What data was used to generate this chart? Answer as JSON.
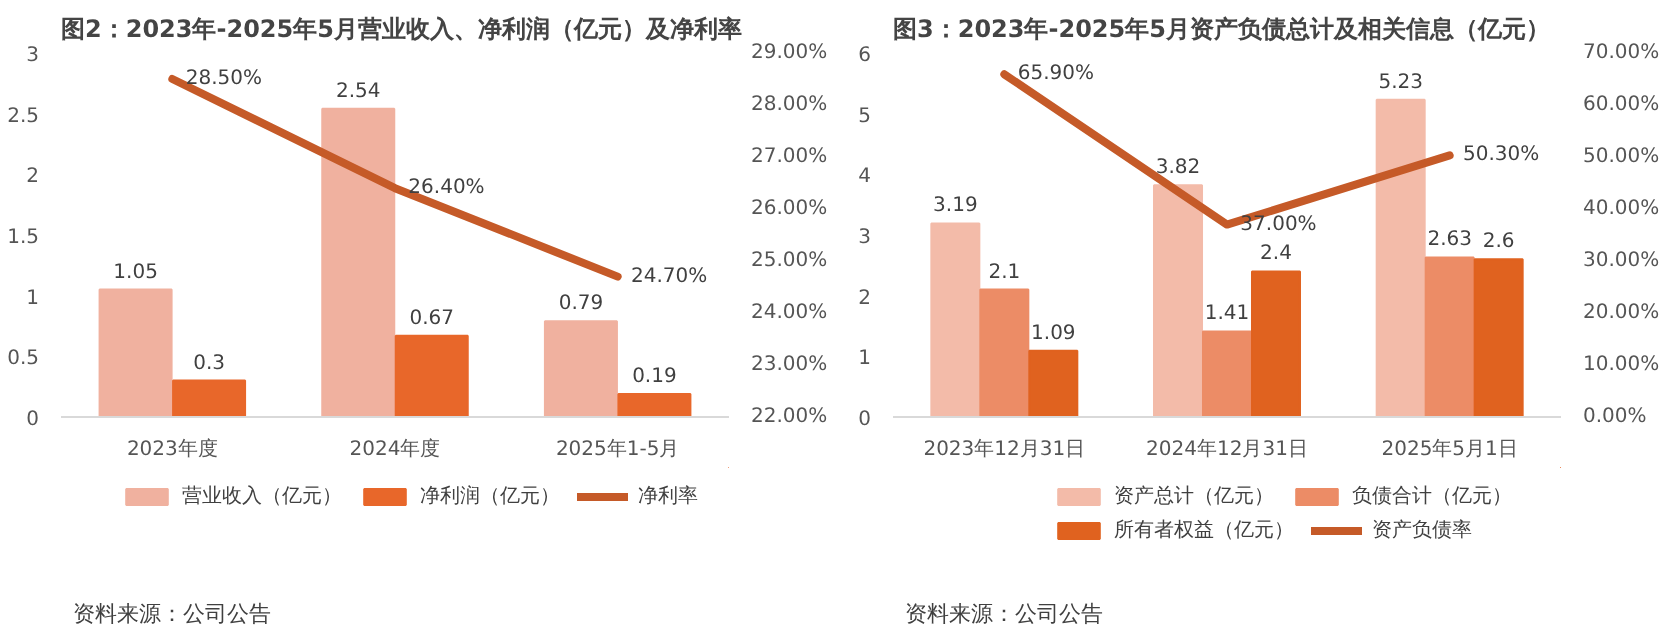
{
  "chart_data": [
    {
      "type": "bar",
      "title": "图2：2023年-2025年5月营业收入、净利润（亿元）及净利率",
      "categories": [
        "2023年度",
        "2024年度",
        "2025年1-5月"
      ],
      "ylim": [
        0,
        3
      ],
      "yticks": [
        0,
        0.5,
        1,
        1.5,
        2,
        2.5,
        3
      ],
      "y2lim": [
        22,
        29
      ],
      "y2ticks": [
        {
          "value": 22,
          "label": "22.00%"
        },
        {
          "value": 23,
          "label": "23.00%"
        },
        {
          "value": 24,
          "label": "24.00%"
        },
        {
          "value": 25,
          "label": "25.00%"
        },
        {
          "value": 26,
          "label": "26.00%"
        },
        {
          "value": 27,
          "label": "27.00%"
        },
        {
          "value": 28,
          "label": "28.00%"
        },
        {
          "value": 29,
          "label": "29.00%"
        }
      ],
      "legend": "bottom",
      "annotations": [
        "资料来源：公司公告"
      ],
      "series": [
        {
          "name": "营业收入（亿元）",
          "color": "#f0b19f",
          "values": [
            1.05,
            2.54,
            0.79
          ],
          "value_labels": [
            "1.05",
            "2.54",
            "0.79"
          ]
        },
        {
          "name": "净利润（亿元）",
          "color": "#e8672a",
          "values": [
            0.3,
            0.67,
            0.19
          ],
          "value_labels": [
            "0.3",
            "0.67",
            "0.19"
          ]
        },
        {
          "name": "净利率",
          "type": "line",
          "axis": "y2",
          "color": "#c55a28",
          "values": [
            28.5,
            26.4,
            24.7
          ],
          "value_labels": [
            "28.50%",
            "26.40%",
            "24.70%"
          ]
        }
      ]
    },
    {
      "type": "bar",
      "title": "图3：2023年-2025年5月资产负债总计及相关信息（亿元）",
      "categories": [
        "2023年12月31日",
        "2024年12月31日",
        "2025年5月1日"
      ],
      "ylim": [
        0,
        6
      ],
      "yticks": [
        0,
        1,
        2,
        3,
        4,
        5,
        6
      ],
      "y2lim": [
        0,
        70
      ],
      "y2ticks": [
        {
          "value": 0,
          "label": "0.00%"
        },
        {
          "value": 10,
          "label": "10.00%"
        },
        {
          "value": 20,
          "label": "20.00%"
        },
        {
          "value": 30,
          "label": "30.00%"
        },
        {
          "value": 40,
          "label": "40.00%"
        },
        {
          "value": 50,
          "label": "50.00%"
        },
        {
          "value": 60,
          "label": "60.00%"
        },
        {
          "value": 70,
          "label": "70.00%"
        }
      ],
      "legend": "bottom",
      "annotations": [
        "资料来源：公司公告"
      ],
      "series": [
        {
          "name": "资产总计（亿元）",
          "color": "#f3bba9",
          "values": [
            3.19,
            3.82,
            5.23
          ],
          "value_labels": [
            "3.19",
            "3.82",
            "5.23"
          ]
        },
        {
          "name": "负债合计（亿元）",
          "color": "#ec8c66",
          "values": [
            2.1,
            1.41,
            2.63
          ],
          "value_labels": [
            "2.1",
            "1.41",
            "2.63"
          ]
        },
        {
          "name": "所有者权益（亿元）",
          "color": "#e0621f",
          "values": [
            1.09,
            2.4,
            2.6
          ],
          "value_labels": [
            "1.09",
            "2.4",
            "2.6"
          ]
        },
        {
          "name": "资产负债率",
          "type": "line",
          "axis": "y2",
          "color": "#c55a28",
          "values": [
            65.9,
            37.0,
            50.3
          ],
          "value_labels": [
            "65.90%",
            "37.00%",
            "50.30%"
          ]
        }
      ]
    }
  ]
}
